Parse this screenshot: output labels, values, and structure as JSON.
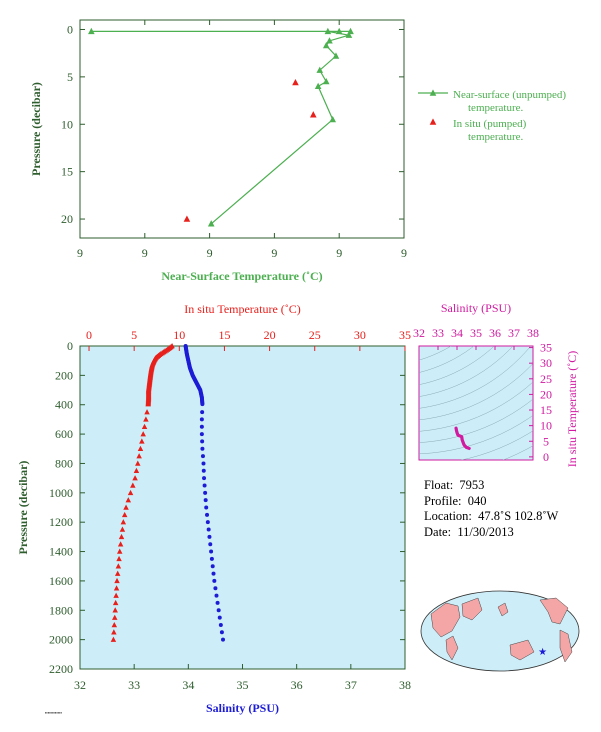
{
  "colors": {
    "green": "#4caf50",
    "axis_green": "#2e5d2e",
    "red": "#e8201c",
    "blue": "#1c1cd6",
    "magenta": "#d11aa0",
    "panel_fill": "#cdeef8",
    "land": "#f4a6a6"
  },
  "chart_data": [
    {
      "type": "line",
      "title": "",
      "xlabel": "Near-Surface Temperature (˚C)",
      "ylabel": "Pressure (decibar)",
      "x_tick_labels": [
        "9",
        "9",
        "9",
        "9",
        "9",
        "9"
      ],
      "y_ticks": [
        0,
        5,
        10,
        15,
        20
      ],
      "ylim": [
        0,
        22
      ],
      "legend_position": "right",
      "series": [
        {
          "name": "Near-surface (unpumped) temperature.",
          "marker": "triangle",
          "points_norm_x_pressure": [
            [
              0.035,
              0.2
            ],
            [
              0.835,
              0.2
            ],
            [
              0.8,
              0.2
            ],
            [
              0.765,
              0.2
            ],
            [
              0.83,
              0.6
            ],
            [
              0.77,
              1.2
            ],
            [
              0.76,
              1.7
            ],
            [
              0.79,
              2.8
            ],
            [
              0.74,
              4.3
            ],
            [
              0.76,
              5.5
            ],
            [
              0.735,
              6.0
            ],
            [
              0.78,
              9.5
            ],
            [
              0.405,
              20.5
            ]
          ]
        },
        {
          "name": "In situ (pumped) temperature.",
          "marker": "triangle",
          "points_norm_x_pressure": [
            [
              0.665,
              5.6
            ],
            [
              0.72,
              9.0
            ],
            [
              0.33,
              20.0
            ]
          ]
        }
      ]
    },
    {
      "type": "scatter",
      "title": "",
      "top_axis_label": "In situ Temperature (˚C)",
      "bottom_axis_label": "Salinity (PSU)",
      "ylabel": "Pressure (decibar)",
      "temperature_ticks": [
        0,
        5,
        10,
        15,
        20,
        25,
        30,
        35
      ],
      "temperature_range": [
        -1,
        35
      ],
      "salinity_ticks": [
        32,
        33,
        34,
        35,
        36,
        37,
        38
      ],
      "salinity_range": [
        32,
        38
      ],
      "pressure_ticks": [
        0,
        200,
        400,
        600,
        800,
        1000,
        1200,
        1400,
        1600,
        1800,
        2000,
        2200
      ],
      "pressure_range": [
        0,
        2200
      ],
      "series": [
        {
          "name": "In situ Temperature (˚C)",
          "profile": [
            [
              0,
              9.2
            ],
            [
              20,
              8.8
            ],
            [
              40,
              8.3
            ],
            [
              60,
              7.8
            ],
            [
              80,
              7.4
            ],
            [
              100,
              7.2
            ],
            [
              130,
              7.0
            ],
            [
              160,
              6.9
            ],
            [
              200,
              6.8
            ],
            [
              250,
              6.7
            ],
            [
              300,
              6.6
            ],
            [
              350,
              6.6
            ],
            [
              400,
              6.55
            ],
            [
              500,
              6.3
            ],
            [
              600,
              6.0
            ],
            [
              700,
              5.7
            ],
            [
              800,
              5.4
            ],
            [
              900,
              5.1
            ],
            [
              1000,
              4.6
            ],
            [
              1100,
              4.1
            ],
            [
              1200,
              3.8
            ],
            [
              1300,
              3.6
            ],
            [
              1400,
              3.4
            ],
            [
              1500,
              3.25
            ],
            [
              1600,
              3.1
            ],
            [
              1700,
              3.0
            ],
            [
              1800,
              2.9
            ],
            [
              1900,
              2.8
            ],
            [
              2000,
              2.7
            ]
          ]
        },
        {
          "name": "Salinity (PSU)",
          "profile": [
            [
              0,
              33.95
            ],
            [
              50,
              33.97
            ],
            [
              100,
              34.0
            ],
            [
              150,
              34.03
            ],
            [
              200,
              34.08
            ],
            [
              250,
              34.15
            ],
            [
              300,
              34.22
            ],
            [
              350,
              34.25
            ],
            [
              400,
              34.26
            ],
            [
              500,
              34.25
            ],
            [
              600,
              34.25
            ],
            [
              700,
              34.26
            ],
            [
              800,
              34.28
            ],
            [
              900,
              34.29
            ],
            [
              1000,
              34.31
            ],
            [
              1100,
              34.33
            ],
            [
              1200,
              34.36
            ],
            [
              1300,
              34.39
            ],
            [
              1400,
              34.42
            ],
            [
              1500,
              34.45
            ],
            [
              1600,
              34.48
            ],
            [
              1700,
              34.52
            ],
            [
              1800,
              34.56
            ],
            [
              1900,
              34.6
            ],
            [
              2000,
              34.64
            ]
          ]
        }
      ]
    },
    {
      "type": "scatter",
      "title": "",
      "xlabel": "Salinity (PSU)",
      "ylabel": "In situ Temperature (˚C)",
      "x_ticks": [
        32,
        33,
        34,
        35,
        36,
        37,
        38
      ],
      "y_ticks": [
        0,
        5,
        10,
        15,
        20,
        25,
        30,
        35
      ],
      "xlim": [
        32,
        38
      ],
      "ylim": [
        -1,
        35.5
      ],
      "ts_points": [
        [
          33.95,
          9.2
        ],
        [
          33.97,
          8.5
        ],
        [
          34.0,
          7.8
        ],
        [
          34.05,
          7.0
        ],
        [
          34.1,
          6.8
        ],
        [
          34.2,
          6.6
        ],
        [
          34.25,
          6.4
        ],
        [
          34.26,
          6.0
        ],
        [
          34.27,
          5.5
        ],
        [
          34.3,
          5.0
        ],
        [
          34.33,
          4.5
        ],
        [
          34.36,
          4.0
        ],
        [
          34.4,
          3.6
        ],
        [
          34.45,
          3.3
        ],
        [
          34.5,
          3.0
        ],
        [
          34.56,
          2.9
        ],
        [
          34.64,
          2.7
        ]
      ]
    }
  ],
  "info": {
    "float_label": "Float:",
    "float_value": "7953",
    "profile_label": "Profile:",
    "profile_value": "040",
    "location_label": "Location:",
    "location_value": "47.8˚S  102.8˚W",
    "date_label": "Date:",
    "date_value": "11/30/2013"
  },
  "map": {
    "marker_lat": -47.8,
    "marker_lon": -102.8
  }
}
